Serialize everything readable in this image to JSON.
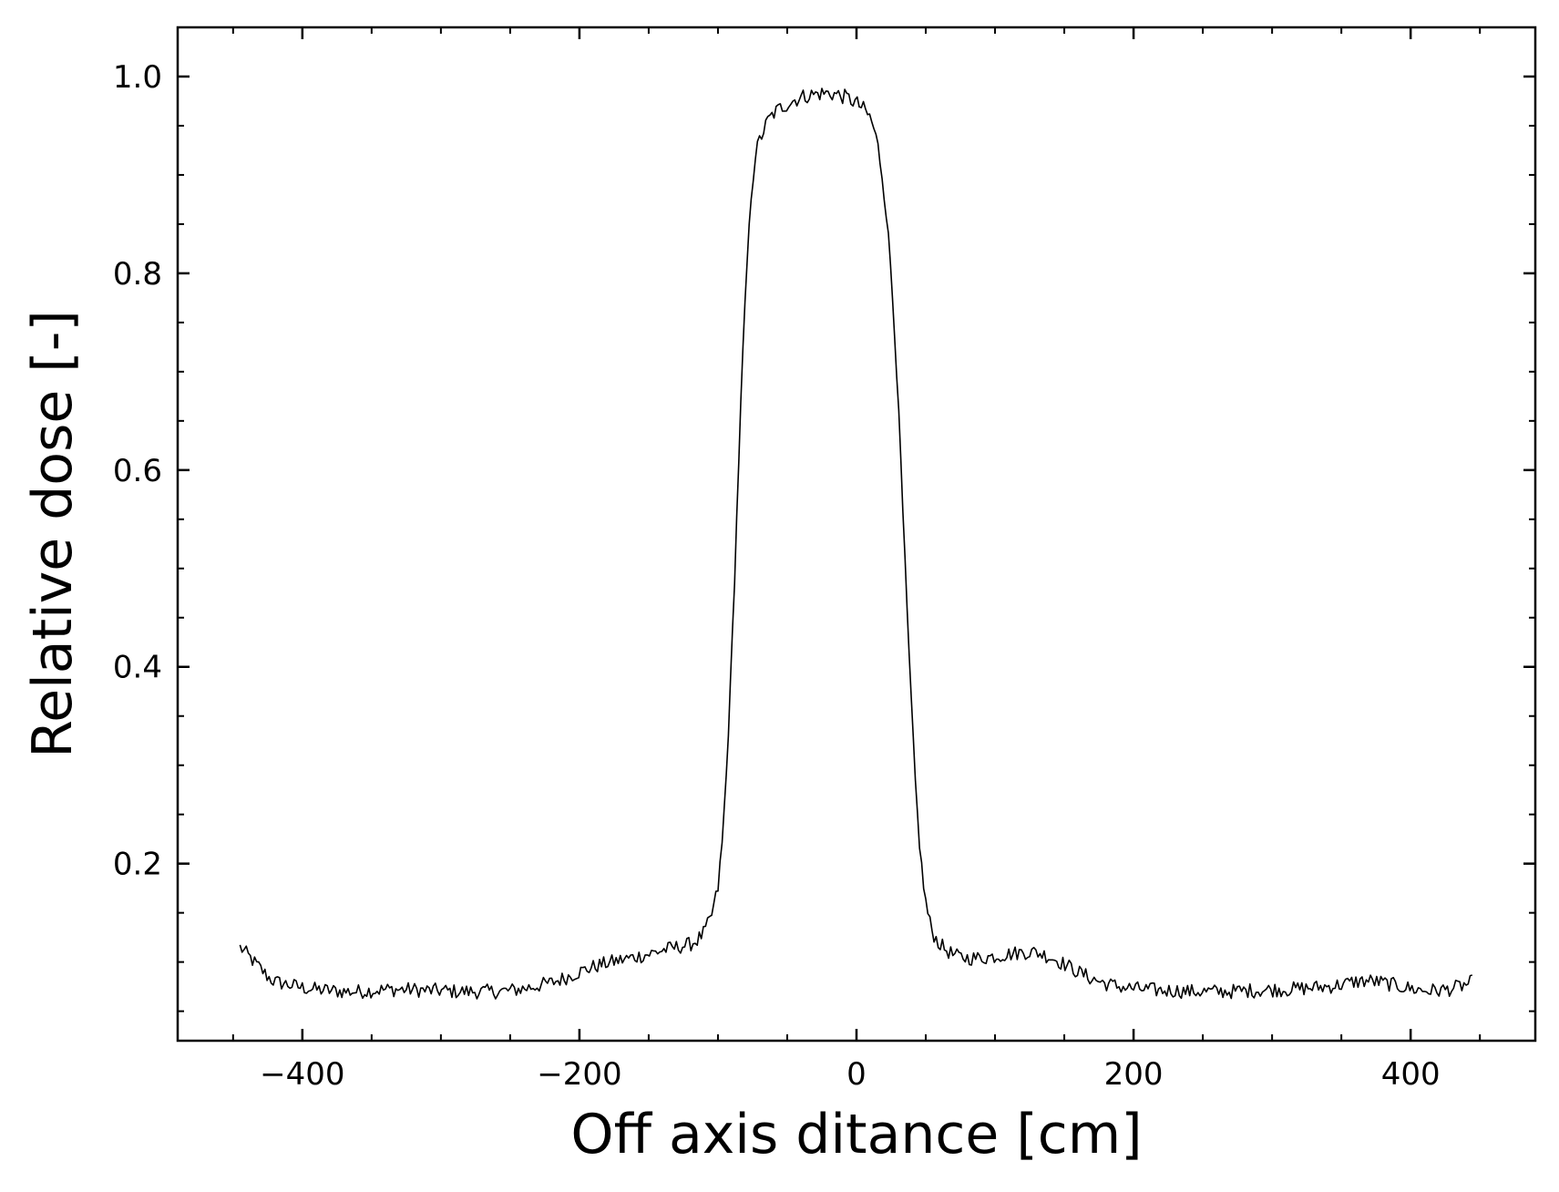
{
  "chart_data": {
    "type": "line",
    "title": "",
    "xlabel": "Off axis ditance [cm]",
    "ylabel": "Relative dose [-]",
    "xlim": [
      -490,
      490
    ],
    "ylim": [
      0.02,
      1.05
    ],
    "x_ticks": [
      -400,
      -200,
      0,
      200,
      400
    ],
    "x_tick_labels": [
      "−400",
      "−200",
      "0",
      "200",
      "400"
    ],
    "x_minor_step": 50,
    "y_ticks": [
      0.2,
      0.4,
      0.6,
      0.8,
      1.0
    ],
    "y_tick_labels": [
      "0.2",
      "0.4",
      "0.6",
      "0.8",
      "1.0"
    ],
    "y_minor_step": 0.05,
    "ticks_direction": "in",
    "ticks_on_all_sides": true,
    "grid": false,
    "legend": "none",
    "line_color": "#000000",
    "series": [
      {
        "x": [
          -445,
          -440,
          -435,
          -430,
          -425,
          -420,
          -410,
          -400,
          -390,
          -380,
          -370,
          -360,
          -350,
          -340,
          -330,
          -320,
          -310,
          -300,
          -290,
          -280,
          -270,
          -260,
          -250,
          -240,
          -230,
          -220,
          -210,
          -200,
          -190,
          -180,
          -170,
          -160,
          -150,
          -140,
          -130,
          -120,
          -115,
          -110,
          -105,
          -100,
          -97,
          -94,
          -91,
          -88,
          -85,
          -82,
          -79,
          -76,
          -73,
          -70,
          -67,
          -64,
          -60,
          -55,
          -50,
          -45,
          -40,
          -35,
          -30,
          -25,
          -20,
          -15,
          -10,
          -5,
          0,
          5,
          10,
          13,
          16,
          19,
          22,
          25,
          28,
          31,
          34,
          37,
          40,
          43,
          46,
          49,
          52,
          55,
          58,
          61,
          64,
          67,
          70,
          75,
          80,
          90,
          100,
          110,
          120,
          130,
          140,
          150,
          160,
          170,
          180,
          190,
          200,
          210,
          220,
          230,
          240,
          250,
          260,
          270,
          280,
          290,
          300,
          310,
          320,
          330,
          340,
          350,
          360,
          370,
          380,
          390,
          400,
          410,
          420,
          430,
          440,
          445
        ],
        "y": [
          0.115,
          0.108,
          0.1,
          0.093,
          0.085,
          0.08,
          0.077,
          0.074,
          0.072,
          0.071,
          0.07,
          0.07,
          0.071,
          0.072,
          0.072,
          0.072,
          0.071,
          0.071,
          0.07,
          0.07,
          0.07,
          0.07,
          0.071,
          0.073,
          0.076,
          0.079,
          0.084,
          0.09,
          0.095,
          0.099,
          0.102,
          0.105,
          0.108,
          0.112,
          0.115,
          0.118,
          0.122,
          0.13,
          0.145,
          0.175,
          0.22,
          0.29,
          0.38,
          0.49,
          0.61,
          0.72,
          0.81,
          0.88,
          0.92,
          0.935,
          0.945,
          0.955,
          0.962,
          0.968,
          0.972,
          0.976,
          0.979,
          0.981,
          0.982,
          0.983,
          0.983,
          0.982,
          0.98,
          0.977,
          0.973,
          0.967,
          0.958,
          0.945,
          0.925,
          0.895,
          0.855,
          0.8,
          0.73,
          0.64,
          0.54,
          0.44,
          0.35,
          0.27,
          0.21,
          0.17,
          0.145,
          0.13,
          0.122,
          0.117,
          0.113,
          0.11,
          0.107,
          0.105,
          0.104,
          0.104,
          0.106,
          0.108,
          0.11,
          0.11,
          0.105,
          0.098,
          0.09,
          0.083,
          0.078,
          0.075,
          0.073,
          0.072,
          0.071,
          0.071,
          0.07,
          0.07,
          0.07,
          0.07,
          0.071,
          0.071,
          0.072,
          0.072,
          0.073,
          0.074,
          0.075,
          0.077,
          0.08,
          0.081,
          0.079,
          0.076,
          0.073,
          0.071,
          0.071,
          0.073,
          0.077,
          0.08
        ]
      }
    ]
  }
}
